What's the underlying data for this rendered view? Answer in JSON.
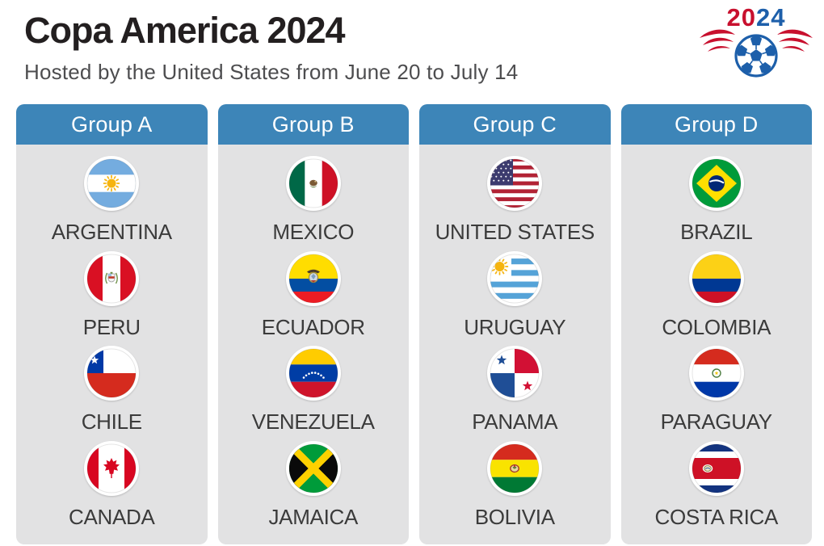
{
  "header": {
    "title": "Copa America 2024",
    "subtitle": "Hosted by the United States from June 20 to July 14"
  },
  "logo": {
    "year_first": "20",
    "year_second": "24",
    "icons": {
      "ball": "soccer-ball-icon",
      "left_wing": "left-wing-icon",
      "right_wing": "right-wing-icon"
    },
    "colors": {
      "red": "#C8102E",
      "blue": "#1D5FAA"
    }
  },
  "colors": {
    "group_header_blue": "#3D85B8",
    "panel_gray": "#E2E2E3",
    "title_text": "#231F20",
    "subtitle_text": "#4D4D4F",
    "team_text": "#3B3B3B"
  },
  "groups": [
    {
      "label": "Group A",
      "teams": [
        {
          "name": "ARGENTINA",
          "flag": "argentina"
        },
        {
          "name": "PERU",
          "flag": "peru"
        },
        {
          "name": "CHILE",
          "flag": "chile"
        },
        {
          "name": "CANADA",
          "flag": "canada"
        }
      ]
    },
    {
      "label": "Group B",
      "teams": [
        {
          "name": "MEXICO",
          "flag": "mexico"
        },
        {
          "name": "ECUADOR",
          "flag": "ecuador"
        },
        {
          "name": "VENEZUELA",
          "flag": "venezuela"
        },
        {
          "name": "JAMAICA",
          "flag": "jamaica"
        }
      ]
    },
    {
      "label": "Group C",
      "teams": [
        {
          "name": "UNITED STATES",
          "flag": "united_states"
        },
        {
          "name": "URUGUAY",
          "flag": "uruguay"
        },
        {
          "name": "PANAMA",
          "flag": "panama"
        },
        {
          "name": "BOLIVIA",
          "flag": "bolivia"
        }
      ]
    },
    {
      "label": "Group D",
      "teams": [
        {
          "name": "BRAZIL",
          "flag": "brazil"
        },
        {
          "name": "COLOMBIA",
          "flag": "colombia"
        },
        {
          "name": "PARAGUAY",
          "flag": "paraguay"
        },
        {
          "name": "COSTA RICA",
          "flag": "costa_rica"
        }
      ]
    }
  ]
}
